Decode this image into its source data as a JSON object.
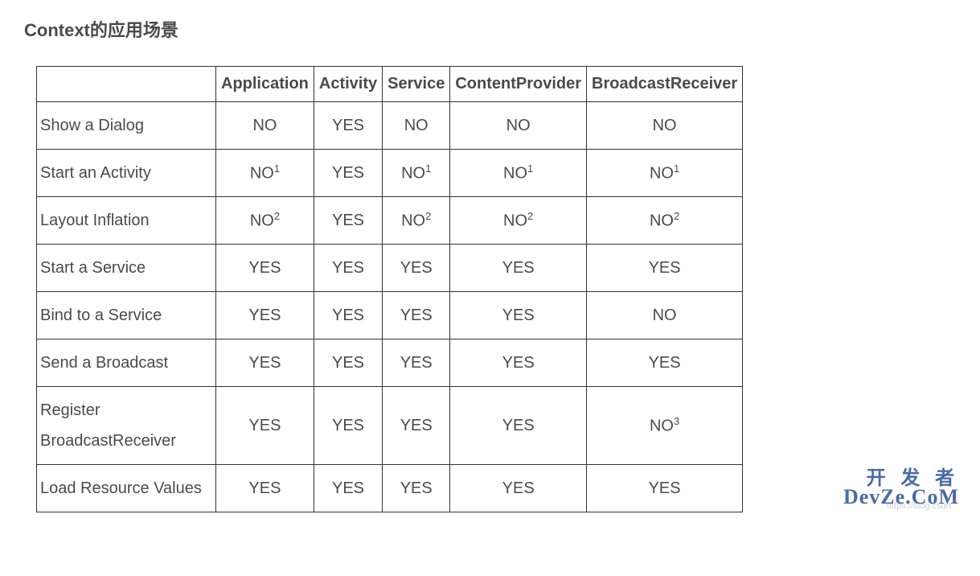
{
  "title": "Context的应用场景",
  "table": {
    "type": "table",
    "background_color": "#ffffff",
    "border_color": "#333333",
    "text_color": "#4a4a4a",
    "header_fontsize": 20,
    "cell_fontsize": 20,
    "columns": [
      "",
      "Application",
      "Activity",
      "Service",
      "ContentProvider",
      "BroadcastReceiver"
    ],
    "rows": [
      {
        "label": "Show a Dialog",
        "cells": [
          {
            "text": "NO"
          },
          {
            "text": "YES"
          },
          {
            "text": "NO"
          },
          {
            "text": "NO"
          },
          {
            "text": "NO"
          }
        ]
      },
      {
        "label": "Start an Activity",
        "cells": [
          {
            "text": "NO",
            "sup": "1"
          },
          {
            "text": "YES"
          },
          {
            "text": "NO",
            "sup": "1"
          },
          {
            "text": "NO",
            "sup": "1"
          },
          {
            "text": "NO",
            "sup": "1"
          }
        ]
      },
      {
        "label": "Layout Inflation",
        "cells": [
          {
            "text": "NO",
            "sup": "2"
          },
          {
            "text": "YES"
          },
          {
            "text": "NO",
            "sup": "2"
          },
          {
            "text": "NO",
            "sup": "2"
          },
          {
            "text": "NO",
            "sup": "2"
          }
        ]
      },
      {
        "label": "Start a Service",
        "cells": [
          {
            "text": "YES"
          },
          {
            "text": "YES"
          },
          {
            "text": "YES"
          },
          {
            "text": "YES"
          },
          {
            "text": "YES"
          }
        ]
      },
      {
        "label": "Bind to a Service",
        "cells": [
          {
            "text": "YES"
          },
          {
            "text": "YES"
          },
          {
            "text": "YES"
          },
          {
            "text": "YES"
          },
          {
            "text": "NO"
          }
        ]
      },
      {
        "label": "Send a Broadcast",
        "cells": [
          {
            "text": "YES"
          },
          {
            "text": "YES"
          },
          {
            "text": "YES"
          },
          {
            "text": "YES"
          },
          {
            "text": "YES"
          }
        ]
      },
      {
        "label": "Register BroadcastReceiver",
        "cells": [
          {
            "text": "YES"
          },
          {
            "text": "YES"
          },
          {
            "text": "YES"
          },
          {
            "text": "YES"
          },
          {
            "text": "NO",
            "sup": "3"
          }
        ]
      },
      {
        "label": "Load Resource Values",
        "cells": [
          {
            "text": "YES"
          },
          {
            "text": "YES"
          },
          {
            "text": "YES"
          },
          {
            "text": "YES"
          },
          {
            "text": "YES"
          }
        ]
      }
    ]
  },
  "watermark": "https://blog.csdn",
  "brand_cn": "开 发 者",
  "brand_en": "DevZe.CoM"
}
